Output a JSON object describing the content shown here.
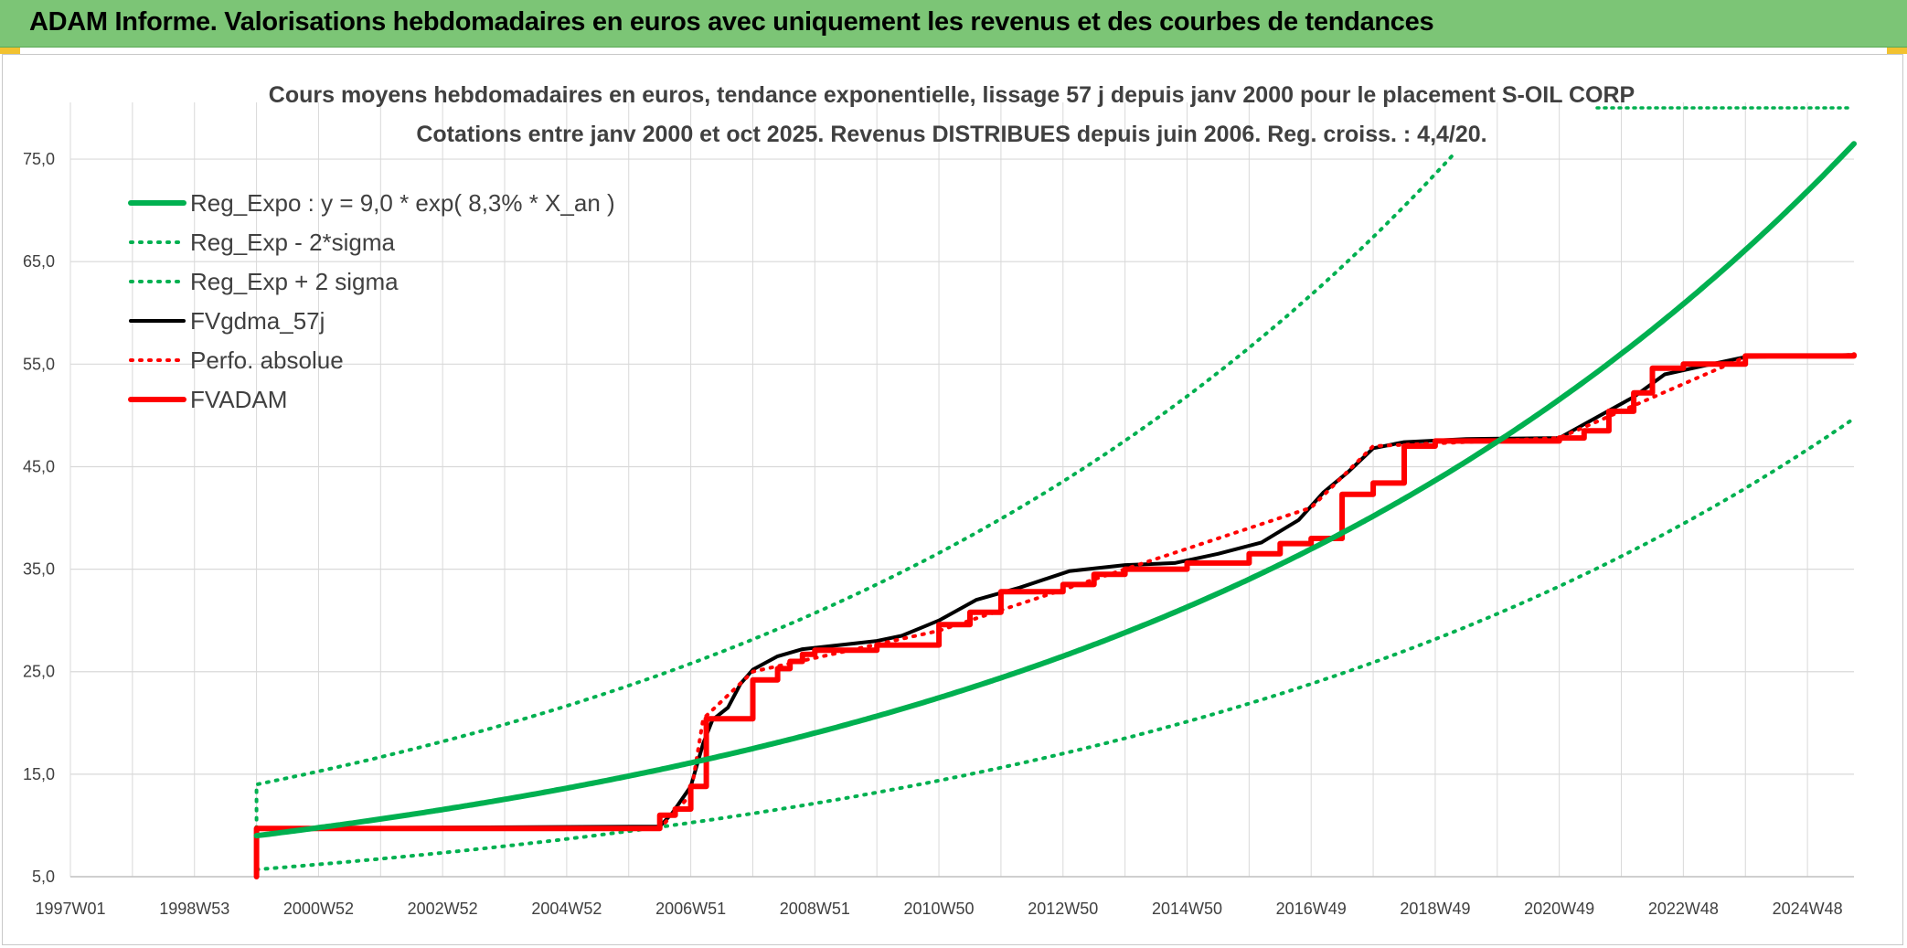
{
  "window": {
    "title": "ADAM Informe. Valorisations hebdomadaires en euros avec uniquement les revenus et des courbes de tendances"
  },
  "colors": {
    "banner": "#7cc576",
    "trend_green": "#00b050",
    "price_black": "#000000",
    "perf_red": "#ff0000",
    "grid": "#d9d9d9",
    "text": "#404040"
  },
  "chart_data": {
    "type": "line",
    "title": "Cours moyens hebdomadaires en euros, tendance exponentielle, lissage 57 j depuis janv 2000 pour le placement S-OIL CORP",
    "subtitle": "Cotations entre janv 2000 et oct 2025. Revenus DISTRIBUES depuis juin 2006. Reg. croiss. : 4,4/20.",
    "xlabel": "",
    "ylabel": "",
    "xlim": [
      1997.0,
      2025.75
    ],
    "ylim": [
      5,
      80
    ],
    "yticks": [
      "5,0",
      "15,0",
      "25,0",
      "35,0",
      "45,0",
      "55,0",
      "65,0",
      "75,0"
    ],
    "xticks": [
      {
        "label": "1997W01",
        "x": 1997.0
      },
      {
        "label": "1998W53",
        "x": 1999.0
      },
      {
        "label": "2000W52",
        "x": 2001.0
      },
      {
        "label": "2002W52",
        "x": 2003.0
      },
      {
        "label": "2004W52",
        "x": 2005.0
      },
      {
        "label": "2006W51",
        "x": 2007.0
      },
      {
        "label": "2008W51",
        "x": 2009.0
      },
      {
        "label": "2010W50",
        "x": 2011.0
      },
      {
        "label": "2012W50",
        "x": 2013.0
      },
      {
        "label": "2014W50",
        "x": 2015.0
      },
      {
        "label": "2016W49",
        "x": 2017.0
      },
      {
        "label": "2018W49",
        "x": 2019.0
      },
      {
        "label": "2020W49",
        "x": 2021.0
      },
      {
        "label": "2022W48",
        "x": 2023.0
      },
      {
        "label": "2024W48",
        "x": 2025.0
      }
    ],
    "grid": true,
    "legend_position": "top-left",
    "series": [
      {
        "name": "Reg_Expo : y = 9,0 * exp( 8,3% *  X_an )",
        "style": "solid-thick",
        "color": "#00b050",
        "x": [
          2000.0,
          2002.0,
          2004.0,
          2006.0,
          2008.0,
          2010.0,
          2012.0,
          2014.0,
          2016.0,
          2018.0,
          2020.0,
          2022.0,
          2024.0,
          2025.75
        ],
        "y": [
          9.0,
          10.6,
          12.5,
          14.8,
          17.5,
          20.7,
          24.4,
          28.8,
          34.0,
          40.2,
          47.4,
          56.0,
          66.1,
          76.5
        ]
      },
      {
        "name": "Reg_Exp - 2*sigma",
        "style": "dotted",
        "color": "#00b050",
        "x": [
          2000.0,
          2002.0,
          2004.0,
          2006.0,
          2008.0,
          2010.0,
          2012.0,
          2014.0,
          2016.0,
          2018.0,
          2020.0,
          2022.0,
          2024.0,
          2025.75
        ],
        "y": [
          5.7,
          6.7,
          8.0,
          9.4,
          11.1,
          13.2,
          15.5,
          18.3,
          21.6,
          25.6,
          30.2,
          35.6,
          42.1,
          49.7
        ]
      },
      {
        "name": "Reg_Exp + 2 sigma",
        "style": "dotted",
        "color": "#00b050",
        "x": [
          2000.0,
          2000.0,
          2002.0,
          2004.0,
          2006.0,
          2008.0,
          2010.0,
          2012.0,
          2014.0,
          2016.0,
          2018.0,
          2019.3
        ],
        "y": [
          7.0,
          14.0,
          16.6,
          19.6,
          23.2,
          27.4,
          32.3,
          38.2,
          45.1,
          53.3,
          63.0,
          75.5
        ]
      },
      {
        "name": "FVgdma_57j",
        "style": "solid",
        "color": "#000000",
        "x": [
          2000.0,
          2006.5,
          2006.7,
          2007.0,
          2007.2,
          2007.35,
          2007.6,
          2007.8,
          2008.0,
          2008.4,
          2008.8,
          2009.4,
          2010.0,
          2010.4,
          2011.0,
          2011.6,
          2012.3,
          2013.1,
          2014.0,
          2014.8,
          2015.5,
          2016.2,
          2016.8,
          2017.2,
          2017.6,
          2018.0,
          2018.5,
          2019.5,
          2021.0,
          2021.6,
          2022.2,
          2022.7,
          2023.3,
          2024.0,
          2025.75
        ],
        "y": [
          9.7,
          9.9,
          11.2,
          13.8,
          18.0,
          20.3,
          21.5,
          23.8,
          25.2,
          26.5,
          27.2,
          27.6,
          28.0,
          28.5,
          30.0,
          32.0,
          33.2,
          34.8,
          35.4,
          35.6,
          36.5,
          37.6,
          39.8,
          42.5,
          44.5,
          46.8,
          47.4,
          47.7,
          47.8,
          49.8,
          51.8,
          54.0,
          54.8,
          55.7,
          55.9
        ]
      },
      {
        "name": "Perfo. absolue",
        "style": "dotted",
        "color": "#ff0000",
        "x": [
          2000.0,
          2006.5,
          2007.0,
          2007.2,
          2008.0,
          2011.0,
          2014.0,
          2017.0,
          2018.0,
          2021.0,
          2024.0,
          2025.75
        ],
        "y": [
          9.7,
          9.7,
          13.0,
          20.4,
          25.0,
          29.0,
          35.0,
          41.0,
          47.0,
          47.8,
          55.7,
          55.9
        ]
      },
      {
        "name": "FVADAM",
        "style": "solid-thick",
        "color": "#ff0000",
        "step": true,
        "x": [
          2000.0,
          2000.0,
          2006.5,
          2006.75,
          2007.0,
          2007.25,
          2008.0,
          2008.4,
          2008.6,
          2008.8,
          2009.0,
          2010.0,
          2011.0,
          2011.5,
          2012.0,
          2013.0,
          2013.5,
          2014.0,
          2015.0,
          2016.0,
          2016.5,
          2017.0,
          2017.5,
          2018.0,
          2018.5,
          2019.0,
          2021.0,
          2021.4,
          2021.8,
          2022.2,
          2022.5,
          2023.0,
          2024.0,
          2025.75
        ],
        "y": [
          5.0,
          9.7,
          11.0,
          11.6,
          13.8,
          20.4,
          24.2,
          25.3,
          26.0,
          26.7,
          27.1,
          27.6,
          29.6,
          30.8,
          32.8,
          33.5,
          34.5,
          35.0,
          35.6,
          36.5,
          37.5,
          38.0,
          42.3,
          43.4,
          47.0,
          47.5,
          47.8,
          48.5,
          50.4,
          52.2,
          54.6,
          55.0,
          55.8,
          55.9
        ]
      }
    ]
  }
}
